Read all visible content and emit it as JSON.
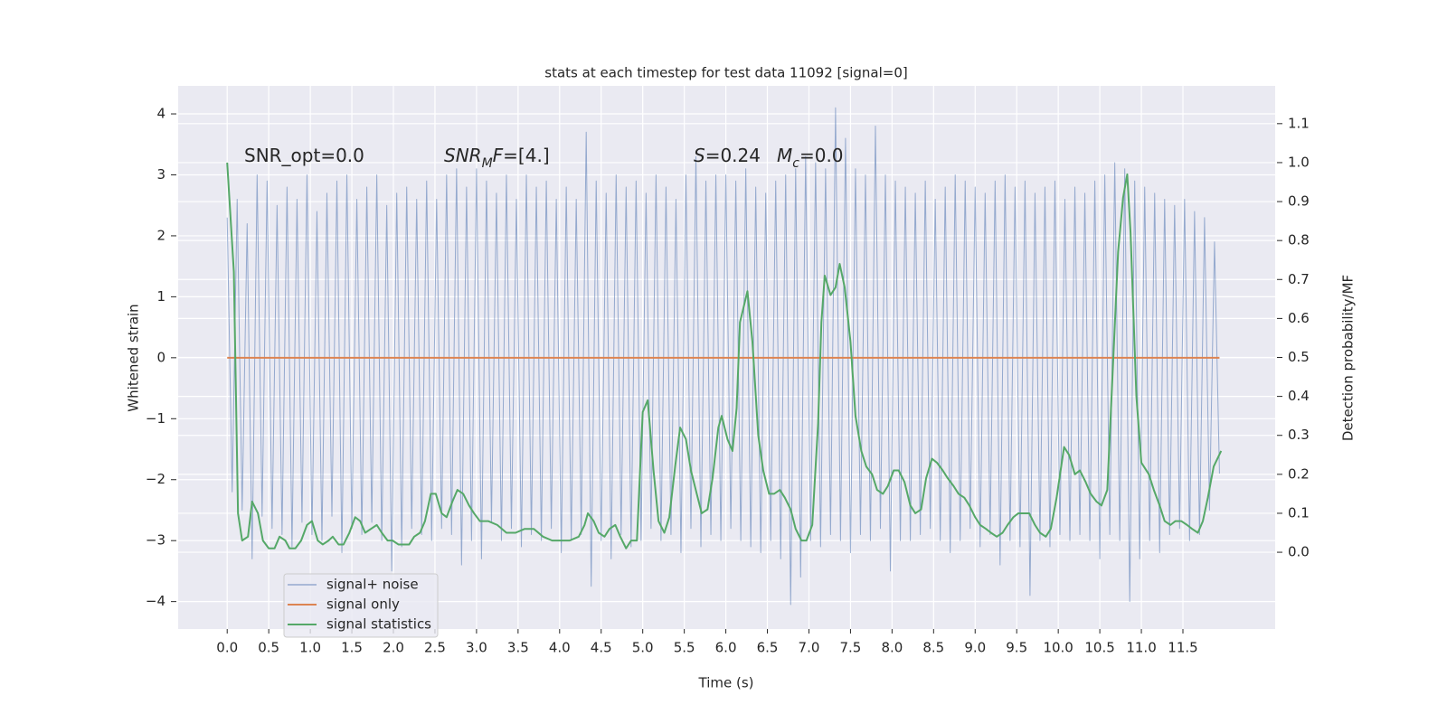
{
  "chart_data": {
    "type": "line",
    "title": "stats at each timestep for test data 11092 [signal=0]",
    "xlabel": "Time (s)",
    "ylabel": "Whitened strain",
    "y2label": "Detection probability/MF",
    "annotations": [
      [
        {
          "text": "SNR_opt=0.0"
        }
      ],
      [
        {
          "text": "SNR",
          "italic": true
        },
        {
          "text": "M",
          "italic": true,
          "sub": true
        },
        {
          "text": "F",
          "italic": true
        },
        {
          "text": "=[4.]"
        }
      ],
      [
        {
          "text": "S",
          "italic": true
        },
        {
          "text": "=0.24"
        }
      ],
      [
        {
          "text": "M",
          "italic": true
        },
        {
          "text": "c",
          "italic": true,
          "sub": true
        },
        {
          "text": "=0.0"
        }
      ]
    ],
    "xlim": [
      -0.59,
      12.61
    ],
    "ylim": [
      -4.45,
      4.46
    ],
    "y2lim": [
      -0.197,
      1.197
    ],
    "xticks": [
      {
        "value": 0,
        "label": "0.0"
      },
      0.5,
      {
        "value": 1,
        "label": "1.0"
      },
      1.5,
      {
        "value": 2,
        "label": "2.0"
      },
      2.5,
      {
        "value": 3,
        "label": "3.0"
      },
      3.5,
      {
        "value": 4,
        "label": "4.0"
      },
      4.5,
      {
        "value": 5,
        "label": "5.0"
      },
      5.5,
      {
        "value": 6,
        "label": "6.0"
      },
      6.5,
      {
        "value": 7,
        "label": "7.0"
      },
      7.5,
      {
        "value": 8,
        "label": "8.0"
      },
      8.5,
      {
        "value": 9,
        "label": "9.0"
      },
      9.5,
      {
        "value": 10,
        "label": "10.0"
      },
      10.5,
      {
        "value": 11,
        "label": "11.0"
      },
      11.5
    ],
    "yticks": [
      {
        "value": -4,
        "label": "−4"
      },
      {
        "value": -3,
        "label": "−3"
      },
      {
        "value": -2,
        "label": "−2"
      },
      {
        "value": -1,
        "label": "−1"
      },
      0,
      1,
      2,
      3,
      4
    ],
    "y2ticks": [
      {
        "value": 0,
        "label": "0.0"
      },
      0.1,
      0.2,
      0.3,
      0.4,
      0.5,
      0.6,
      0.7,
      0.8,
      0.9,
      {
        "value": 1,
        "label": "1.0"
      },
      1.1
    ],
    "grid": true,
    "legend": "lower left",
    "series": [
      {
        "name": "signal+ noise",
        "color": "#4c72b0",
        "x": [
          0,
          0.06,
          0.12,
          0.18,
          0.24,
          0.3,
          0.36,
          0.42,
          0.48,
          0.54,
          0.6,
          0.66,
          0.72,
          0.78,
          0.84,
          0.9,
          0.96,
          1.02,
          1.08,
          1.14,
          1.2,
          1.26,
          1.32,
          1.38,
          1.44,
          1.5,
          1.56,
          1.62,
          1.68,
          1.74,
          1.8,
          1.86,
          1.92,
          1.98,
          2.04,
          2.1,
          2.16,
          2.22,
          2.28,
          2.34,
          2.4,
          2.46,
          2.52,
          2.58,
          2.64,
          2.7,
          2.76,
          2.82,
          2.88,
          2.94,
          3,
          3.06,
          3.12,
          3.18,
          3.24,
          3.3,
          3.36,
          3.42,
          3.48,
          3.54,
          3.6,
          3.66,
          3.72,
          3.78,
          3.84,
          3.9,
          3.96,
          4.02,
          4.08,
          4.14,
          4.2,
          4.26,
          4.32,
          4.38,
          4.44,
          4.5,
          4.56,
          4.62,
          4.68,
          4.74,
          4.8,
          4.86,
          4.92,
          4.98,
          5.04,
          5.1,
          5.16,
          5.22,
          5.28,
          5.34,
          5.4,
          5.46,
          5.52,
          5.58,
          5.64,
          5.7,
          5.76,
          5.82,
          5.88,
          5.94,
          6,
          6.06,
          6.12,
          6.18,
          6.24,
          6.3,
          6.36,
          6.42,
          6.48,
          6.54,
          6.6,
          6.66,
          6.72,
          6.78,
          6.84,
          6.9,
          6.96,
          7.02,
          7.08,
          7.14,
          7.2,
          7.26,
          7.32,
          7.38,
          7.44,
          7.5,
          7.56,
          7.62,
          7.68,
          7.74,
          7.8,
          7.86,
          7.92,
          7.98,
          8.04,
          8.1,
          8.16,
          8.22,
          8.28,
          8.34,
          8.4,
          8.46,
          8.52,
          8.58,
          8.64,
          8.7,
          8.76,
          8.82,
          8.88,
          8.94,
          9,
          9.06,
          9.12,
          9.18,
          9.24,
          9.3,
          9.36,
          9.42,
          9.48,
          9.54,
          9.6,
          9.66,
          9.72,
          9.78,
          9.84,
          9.9,
          9.96,
          10.02,
          10.08,
          10.14,
          10.2,
          10.26,
          10.32,
          10.38,
          10.44,
          10.5,
          10.56,
          10.62,
          10.68,
          10.74,
          10.8,
          10.86,
          10.92,
          10.98,
          11.04,
          11.1,
          11.16,
          11.22,
          11.28,
          11.34,
          11.4,
          11.46,
          11.52,
          11.58,
          11.64,
          11.7,
          11.76,
          11.82,
          11.88,
          11.94
        ],
        "values": [
          2.3,
          -2.2,
          2.6,
          -2.5,
          2.2,
          -3.3,
          3.0,
          -2.6,
          2.9,
          -2.8,
          2.5,
          -2.9,
          2.8,
          -3.1,
          2.6,
          -2.7,
          3.0,
          -2.9,
          2.4,
          -3.0,
          2.7,
          -2.6,
          2.9,
          -3.2,
          3.0,
          -2.8,
          2.6,
          -2.9,
          2.8,
          -2.7,
          3.0,
          -3.0,
          2.5,
          -3.5,
          2.7,
          -3.1,
          2.8,
          -2.8,
          2.6,
          -2.9,
          2.9,
          -3.0,
          2.6,
          -2.8,
          3.0,
          -2.9,
          3.1,
          -3.4,
          2.8,
          -3.0,
          3.1,
          -3.3,
          2.9,
          -2.7,
          2.7,
          -3.0,
          3.0,
          -2.8,
          2.6,
          -3.1,
          3.0,
          -2.9,
          2.8,
          -3.0,
          2.9,
          -2.8,
          2.6,
          -3.2,
          2.8,
          -3.0,
          2.6,
          -2.9,
          3.7,
          -3.75,
          2.9,
          -3.0,
          2.7,
          -3.3,
          3.0,
          -2.9,
          2.8,
          -3.1,
          2.9,
          -3.0,
          2.7,
          -2.8,
          3.0,
          -3.0,
          2.8,
          -2.9,
          2.6,
          -3.2,
          3.0,
          -2.8,
          3.3,
          -3.1,
          2.9,
          -2.9,
          3.0,
          -3.0,
          3.0,
          -2.8,
          2.9,
          -3.0,
          3.1,
          -3.1,
          2.8,
          -3.2,
          2.7,
          -3.0,
          2.9,
          -3.3,
          3.0,
          -4.05,
          3.1,
          -3.6,
          3.3,
          -3.0,
          3.2,
          -3.1,
          3.1,
          -2.9,
          4.1,
          -3.0,
          3.6,
          -3.2,
          3.1,
          -2.9,
          3.0,
          -3.0,
          3.8,
          -2.8,
          3.0,
          -3.5,
          2.9,
          -3.0,
          2.8,
          -3.0,
          2.7,
          -2.9,
          2.9,
          -2.8,
          2.6,
          -3.0,
          2.8,
          -3.2,
          3.0,
          -3.0,
          2.9,
          -2.8,
          2.8,
          -3.1,
          2.7,
          -2.9,
          2.9,
          -3.4,
          3.0,
          -3.0,
          2.8,
          -3.1,
          2.9,
          -3.9,
          2.7,
          -3.0,
          2.8,
          -3.1,
          2.9,
          -2.9,
          2.6,
          -3.0,
          2.8,
          -2.9,
          2.7,
          -3.0,
          2.9,
          -3.3,
          3.0,
          -2.9,
          3.2,
          -3.0,
          3.1,
          -4.0,
          2.9,
          -3.3,
          2.8,
          -3.0,
          2.7,
          -3.2,
          2.6,
          -2.9,
          2.5,
          -2.8,
          2.6,
          -3.0,
          2.4,
          -2.9,
          2.3,
          -2.5,
          1.9,
          -1.9
        ]
      },
      {
        "name": "signal only",
        "color": "#dd8452",
        "x": [
          0,
          11.94
        ],
        "values": [
          0,
          0
        ]
      },
      {
        "name": "signal statistics",
        "color": "#55a868",
        "axis": "y2",
        "x": [
          0,
          0.08,
          0.13,
          0.18,
          0.25,
          0.3,
          0.37,
          0.43,
          0.5,
          0.57,
          0.63,
          0.7,
          0.75,
          0.82,
          0.89,
          0.96,
          1.02,
          1.09,
          1.15,
          1.22,
          1.27,
          1.34,
          1.4,
          1.47,
          1.54,
          1.6,
          1.66,
          1.73,
          1.8,
          1.86,
          1.93,
          1.99,
          2.06,
          2.12,
          2.19,
          2.25,
          2.32,
          2.38,
          2.45,
          2.51,
          2.58,
          2.64,
          2.71,
          2.77,
          2.84,
          2.91,
          2.97,
          3.04,
          3.14,
          3.25,
          3.36,
          3.47,
          3.58,
          3.69,
          3.8,
          3.91,
          4.02,
          4.12,
          4.23,
          4.3,
          4.34,
          4.41,
          4.47,
          4.54,
          4.6,
          4.67,
          4.73,
          4.8,
          4.86,
          4.93,
          5,
          5.06,
          5.13,
          5.19,
          5.26,
          5.32,
          5.39,
          5.45,
          5.52,
          5.58,
          5.65,
          5.71,
          5.78,
          5.84,
          5.91,
          5.95,
          6.02,
          6.08,
          6.13,
          6.17,
          6.26,
          6.32,
          6.39,
          6.45,
          6.52,
          6.58,
          6.65,
          6.71,
          6.78,
          6.84,
          6.91,
          6.97,
          7.04,
          7.11,
          7.15,
          7.19,
          7.26,
          7.32,
          7.37,
          7.43,
          7.5,
          7.56,
          7.63,
          7.69,
          7.76,
          7.82,
          7.89,
          7.95,
          8.02,
          8.08,
          8.15,
          8.22,
          8.28,
          8.35,
          8.41,
          8.48,
          8.54,
          8.61,
          8.67,
          8.74,
          8.8,
          8.87,
          8.93,
          9,
          9.06,
          9.13,
          9.19,
          9.26,
          9.33,
          9.39,
          9.46,
          9.52,
          9.59,
          9.65,
          9.72,
          9.78,
          9.85,
          9.91,
          9.98,
          10.07,
          10.13,
          10.2,
          10.26,
          10.33,
          10.39,
          10.46,
          10.52,
          10.59,
          10.65,
          10.72,
          10.78,
          10.83,
          10.87,
          10.94,
          11,
          11.09,
          11.15,
          11.22,
          11.28,
          11.35,
          11.41,
          11.48,
          11.55,
          11.61,
          11.68,
          11.74,
          11.8,
          11.87,
          11.96
        ],
        "values": [
          1.0,
          0.72,
          0.1,
          0.03,
          0.04,
          0.13,
          0.1,
          0.03,
          0.01,
          0.01,
          0.04,
          0.03,
          0.01,
          0.01,
          0.03,
          0.07,
          0.08,
          0.03,
          0.02,
          0.03,
          0.04,
          0.02,
          0.02,
          0.05,
          0.09,
          0.08,
          0.05,
          0.06,
          0.07,
          0.05,
          0.03,
          0.03,
          0.02,
          0.02,
          0.02,
          0.04,
          0.05,
          0.08,
          0.15,
          0.15,
          0.1,
          0.09,
          0.13,
          0.16,
          0.15,
          0.12,
          0.1,
          0.08,
          0.08,
          0.07,
          0.05,
          0.05,
          0.06,
          0.06,
          0.04,
          0.03,
          0.03,
          0.03,
          0.04,
          0.07,
          0.1,
          0.08,
          0.05,
          0.04,
          0.06,
          0.07,
          0.04,
          0.01,
          0.03,
          0.03,
          0.36,
          0.39,
          0.21,
          0.08,
          0.05,
          0.09,
          0.22,
          0.32,
          0.29,
          0.21,
          0.15,
          0.1,
          0.11,
          0.19,
          0.32,
          0.35,
          0.29,
          0.26,
          0.37,
          0.59,
          0.67,
          0.54,
          0.3,
          0.21,
          0.15,
          0.15,
          0.16,
          0.14,
          0.11,
          0.06,
          0.03,
          0.03,
          0.07,
          0.33,
          0.59,
          0.71,
          0.66,
          0.68,
          0.74,
          0.68,
          0.54,
          0.35,
          0.26,
          0.22,
          0.2,
          0.16,
          0.15,
          0.17,
          0.21,
          0.21,
          0.18,
          0.12,
          0.1,
          0.11,
          0.19,
          0.24,
          0.23,
          0.21,
          0.19,
          0.17,
          0.15,
          0.14,
          0.12,
          0.09,
          0.07,
          0.06,
          0.05,
          0.04,
          0.05,
          0.07,
          0.09,
          0.1,
          0.1,
          0.1,
          0.07,
          0.05,
          0.04,
          0.06,
          0.14,
          0.27,
          0.25,
          0.2,
          0.21,
          0.18,
          0.15,
          0.13,
          0.12,
          0.16,
          0.44,
          0.77,
          0.91,
          0.97,
          0.82,
          0.4,
          0.23,
          0.2,
          0.16,
          0.12,
          0.08,
          0.07,
          0.08,
          0.08,
          0.07,
          0.06,
          0.05,
          0.08,
          0.14,
          0.22,
          0.26
        ]
      }
    ]
  }
}
